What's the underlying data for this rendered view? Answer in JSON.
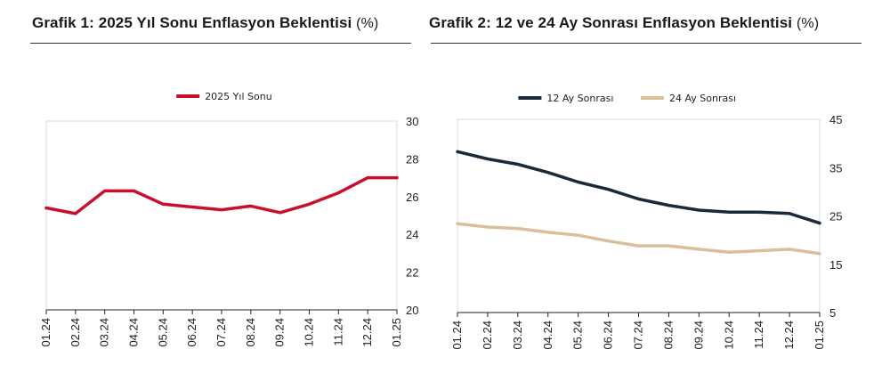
{
  "chart_data": [
    {
      "type": "line",
      "title": "Grafik 1: 2025 Yıl Sonu Enflasyon Beklentisi",
      "unit": "(%)",
      "categories": [
        "01.24",
        "02.24",
        "03.24",
        "04.24",
        "05.24",
        "06.24",
        "07.24",
        "08.24",
        "09.24",
        "10.24",
        "11.24",
        "12.24",
        "01.25"
      ],
      "series": [
        {
          "name": "2025 Yıl Sonu",
          "color": "#c8102e",
          "values": [
            25.4,
            25.1,
            26.3,
            26.3,
            25.6,
            25.45,
            25.3,
            25.5,
            25.15,
            25.6,
            26.2,
            27.0,
            27.0
          ]
        }
      ],
      "ylim": [
        20,
        30
      ],
      "yticks": [
        20,
        22,
        24,
        26,
        28,
        30
      ],
      "y_axis_side": "right",
      "legend": "top-center",
      "grid": false
    },
    {
      "type": "line",
      "title": "Grafik 2: 12 ve 24 Ay Sonrası Enflasyon Beklentisi",
      "unit": "(%)",
      "categories": [
        "01.24",
        "02.24",
        "03.24",
        "04.24",
        "05.24",
        "06.24",
        "07.24",
        "08.24",
        "09.24",
        "10.24",
        "11.24",
        "12.24",
        "01.25"
      ],
      "series": [
        {
          "name": "12 Ay Sonrası",
          "color": "#1b2a3a",
          "values": [
            38.3,
            36.8,
            35.7,
            34.0,
            32.0,
            30.5,
            28.5,
            27.2,
            26.2,
            25.8,
            25.8,
            25.5,
            23.5
          ]
        },
        {
          "name": "24 Ay Sonrası",
          "color": "#d9c09a",
          "values": [
            23.4,
            22.7,
            22.4,
            21.6,
            21.0,
            19.8,
            18.8,
            18.8,
            18.1,
            17.5,
            17.8,
            18.1,
            17.2
          ]
        }
      ],
      "ylim": [
        5,
        45
      ],
      "yticks": [
        5,
        15,
        25,
        35,
        45
      ],
      "y_axis_side": "right",
      "legend": "top-center",
      "grid": false
    }
  ]
}
